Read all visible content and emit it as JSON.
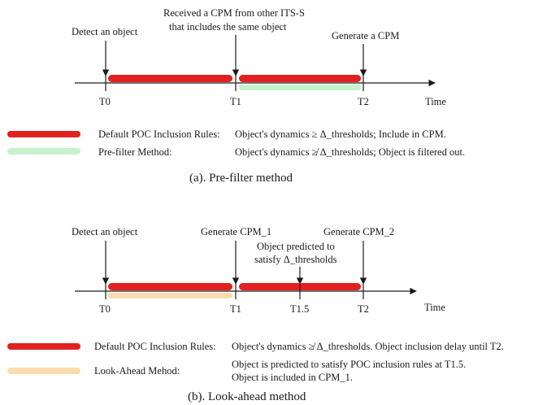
{
  "colors": {
    "default_bar": "#e32020",
    "prefilter_bar": "#c6f2cc",
    "lookahead_bar": "#fbdcae",
    "axis": "#1a1a1a"
  },
  "panel_a": {
    "events": {
      "detect": "Detect an object",
      "received_line1": "Received a CPM from other ITS-S",
      "received_line2": "that includes the same object",
      "generate": "Generate a CPM"
    },
    "ticks": {
      "t0": "T0",
      "t1": "T1",
      "t2": "T2"
    },
    "axis_label": "Time",
    "legend": [
      {
        "name": "Default POC Inclusion Rules:",
        "desc": "Object's dynamics ≥ Δ_thresholds; Include in CPM."
      },
      {
        "name": "Pre-filter Method:",
        "desc": "Object's dynamics ≱ Δ_thresholds; Object is filtered out."
      }
    ],
    "caption": "(a). Pre-filter method"
  },
  "panel_b": {
    "events": {
      "detect": "Detect an object",
      "generate1": "Generate CPM_1",
      "predicted_line1": "Object predicted to",
      "predicted_line2": "satisfy Δ_thresholds",
      "generate2": "Generate CPM_2"
    },
    "ticks": {
      "t0": "T0",
      "t1": "T1",
      "t15": "T1.5",
      "t2": "T2"
    },
    "axis_label": "Time",
    "legend": [
      {
        "name": "Default POC Inclusion Rules:",
        "desc": "Object's dynamics ≱ Δ_thresholds. Object inclusion delay until T2."
      },
      {
        "name": "Look-Ahead Mehod:",
        "desc_line1": "Object is predicted to satisfy POC inclusion rules at T1.5.",
        "desc_line2": "Object is included in CPM_1."
      }
    ],
    "caption": "(b). Look-ahead method"
  }
}
